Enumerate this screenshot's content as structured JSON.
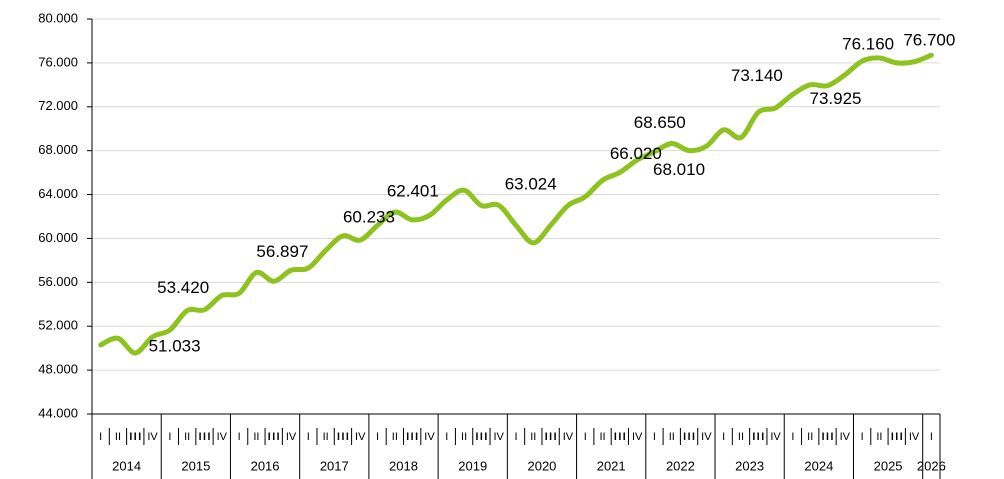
{
  "chart_data": {
    "type": "line",
    "categories": [
      "I",
      "II",
      "III",
      "IV",
      "I",
      "II",
      "III",
      "IV",
      "I",
      "II",
      "III",
      "IV",
      "I",
      "II",
      "III",
      "IV",
      "I",
      "II",
      "III",
      "IV",
      "I",
      "II",
      "III",
      "IV",
      "I",
      "II",
      "III",
      "IV",
      "I",
      "II",
      "III",
      "IV",
      "I",
      "II",
      "III",
      "IV",
      "I",
      "II",
      "III",
      "IV",
      "I",
      "II",
      "III",
      "IV",
      "I",
      "II",
      "III",
      "IV",
      "I"
    ],
    "years": [
      "2014",
      "2015",
      "2016",
      "2017",
      "2018",
      "2019",
      "2020",
      "2021",
      "2022",
      "2023",
      "2024",
      "2025",
      "2026"
    ],
    "values": [
      50300,
      50900,
      49560,
      51033,
      51650,
      53420,
      53500,
      54800,
      55000,
      56897,
      56100,
      57100,
      57300,
      58900,
      60233,
      59850,
      61200,
      62401,
      61700,
      62100,
      63500,
      64400,
      63000,
      63024,
      61200,
      59600,
      61200,
      63000,
      63800,
      65300,
      66020,
      67150,
      67900,
      68650,
      68010,
      68400,
      69900,
      69200,
      71500,
      71900,
      73140,
      74000,
      73925,
      74900,
      76160,
      76450,
      76000,
      76100,
      76700
    ],
    "value_labels": [
      null,
      null,
      null,
      "51.033",
      null,
      "53.420",
      null,
      null,
      null,
      "56.897",
      null,
      null,
      null,
      null,
      "60.233",
      null,
      null,
      "62.401",
      null,
      null,
      null,
      null,
      null,
      "63.024",
      null,
      null,
      null,
      null,
      null,
      null,
      "66.020",
      null,
      null,
      "68.650",
      "68.010",
      null,
      null,
      null,
      null,
      null,
      "73.140",
      null,
      "73.925",
      null,
      "76.160",
      null,
      null,
      null,
      "76.700"
    ],
    "color": "#8dc21f",
    "ylim": [
      44000,
      80000
    ],
    "yticks": [
      {
        "value": 44000,
        "label": "44.000"
      },
      {
        "value": 48000,
        "label": "48.000"
      },
      {
        "value": 52000,
        "label": "52.000"
      },
      {
        "value": 56000,
        "label": "56.000"
      },
      {
        "value": 60000,
        "label": "60.000"
      },
      {
        "value": 64000,
        "label": "64.000"
      },
      {
        "value": 68000,
        "label": "68.000"
      },
      {
        "value": 72000,
        "label": "72.000"
      },
      {
        "value": 76000,
        "label": "76.000"
      },
      {
        "value": 80000,
        "label": "80.000"
      }
    ],
    "grid": true
  }
}
